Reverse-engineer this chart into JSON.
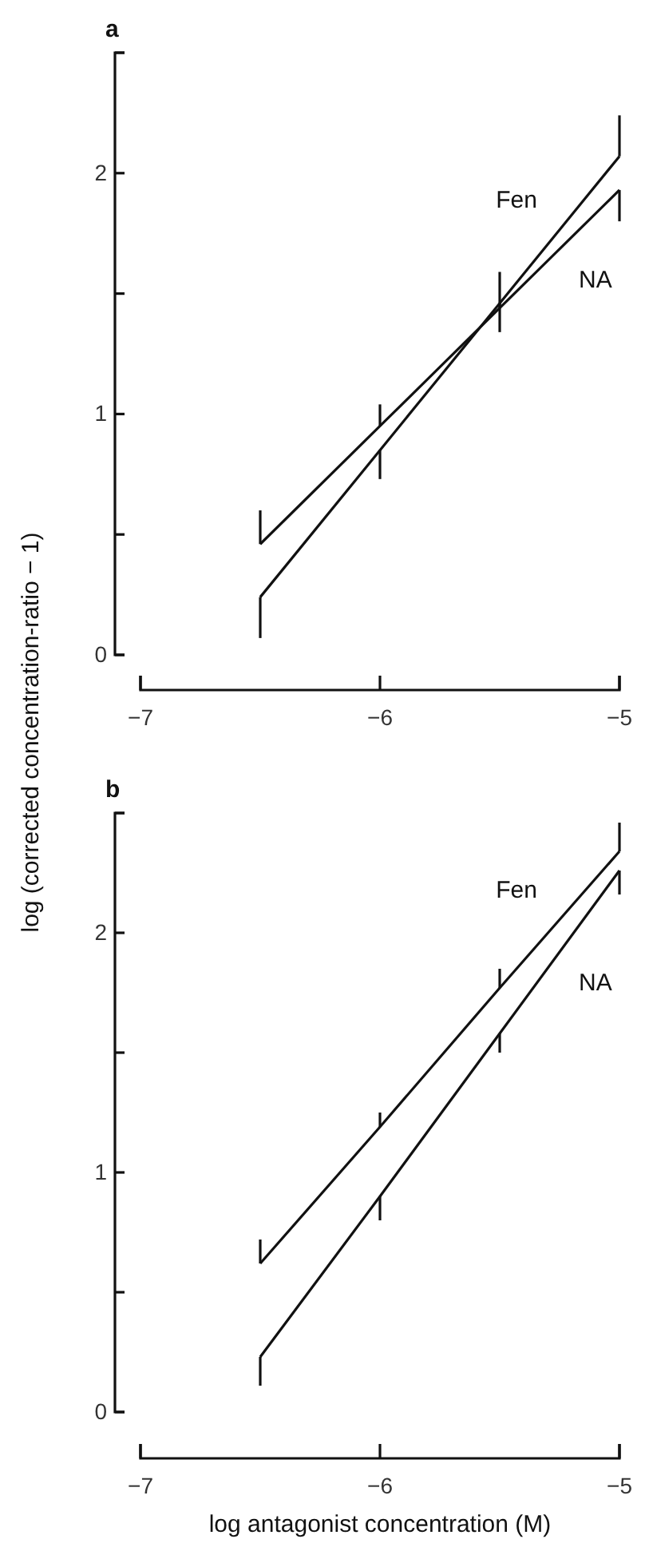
{
  "chart_data": [
    {
      "type": "line",
      "title": "a",
      "x": [
        -6.5,
        -6,
        -5.5,
        -5
      ],
      "xlim": [
        -7,
        -5
      ],
      "xticks": [
        {
          "value": -7,
          "label": "−7"
        },
        {
          "value": -6,
          "label": "−6"
        },
        {
          "value": -5,
          "label": "−5"
        }
      ],
      "ylim": [
        0,
        2.5
      ],
      "yticks": [
        0,
        {
          "value": 0.5,
          "label": null
        },
        1,
        {
          "value": 1.5,
          "label": null
        },
        2,
        {
          "value": 2.5,
          "label": null
        }
      ],
      "grid": false,
      "legend": false,
      "marker": "none",
      "line_style": "solid",
      "series": [
        {
          "name": "Fen",
          "color": "#111111",
          "values": [
            0.24,
            0.85,
            1.46,
            2.07
          ],
          "errors": [
            [
              0.07,
              0.24
            ],
            [
              0.73,
              0.85
            ],
            [
              1.34,
              1.46
            ],
            [
              2.07,
              2.24
            ]
          ]
        },
        {
          "name": "NA",
          "color": "#111111",
          "values": [
            0.46,
            0.95,
            1.44,
            1.93
          ],
          "errors": [
            [
              0.46,
              0.6
            ],
            [
              0.95,
              1.04
            ],
            [
              1.44,
              1.59
            ],
            [
              1.8,
              1.93
            ]
          ]
        }
      ]
    },
    {
      "type": "line",
      "title": "b",
      "xlabel": "log antagonist concentration (M)",
      "ylabel": "log (corrected concentration-ratio − 1)",
      "x": [
        -6.5,
        -6,
        -5.5,
        -5
      ],
      "xlim": [
        -7,
        -5
      ],
      "xticks": [
        {
          "value": -7,
          "label": "−7"
        },
        {
          "value": -6,
          "label": "−6"
        },
        {
          "value": -5,
          "label": "−5"
        }
      ],
      "ylim": [
        0,
        2.5
      ],
      "yticks": [
        0,
        {
          "value": 0.5,
          "label": null
        },
        1,
        {
          "value": 1.5,
          "label": null
        },
        2,
        {
          "value": 2.5,
          "label": null
        }
      ],
      "grid": false,
      "legend": false,
      "marker": "none",
      "line_style": "solid",
      "series": [
        {
          "name": "Fen",
          "color": "#111111",
          "values": [
            0.62,
            1.19,
            1.77,
            2.34
          ],
          "errors": [
            [
              0.62,
              0.72
            ],
            [
              1.19,
              1.25
            ],
            [
              1.77,
              1.85
            ],
            [
              2.34,
              2.46
            ]
          ]
        },
        {
          "name": "NA",
          "color": "#111111",
          "values": [
            0.23,
            0.9,
            1.58,
            2.26
          ],
          "errors": [
            [
              0.11,
              0.23
            ],
            [
              0.8,
              0.9
            ],
            [
              1.5,
              1.58
            ],
            [
              2.16,
              2.26
            ]
          ]
        }
      ]
    }
  ]
}
